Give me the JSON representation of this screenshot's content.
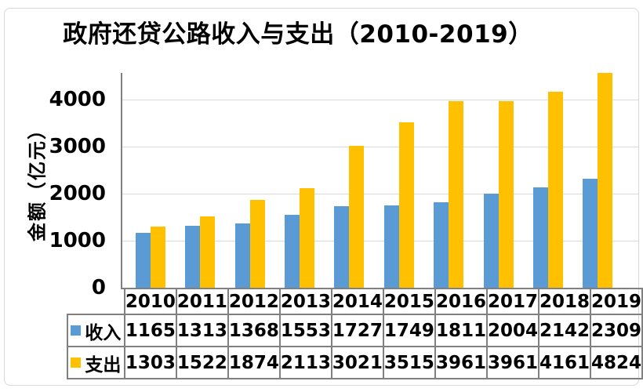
{
  "chart_data": {
    "type": "bar",
    "title": "政府还贷公路收入与支出（2010-2019）",
    "ylabel": "金额（亿元）",
    "categories": [
      "2010",
      "2011",
      "2012",
      "2013",
      "2014",
      "2015",
      "2016",
      "2017",
      "2018",
      "2019"
    ],
    "series": [
      {
        "key": "income",
        "name": "收入",
        "color": "#5B9BD5",
        "values": [
          1165,
          1313,
          1368,
          1553,
          1727,
          1749,
          1811,
          2004,
          2142,
          2309
        ]
      },
      {
        "key": "expense",
        "name": "支出",
        "color": "#FFC000",
        "values": [
          1303,
          1522,
          1874,
          2113,
          3021,
          3515,
          3961,
          3961,
          4161,
          4824
        ]
      }
    ],
    "yticks": [
      0,
      1000,
      2000,
      3000,
      4000
    ],
    "ylim": [
      0,
      4567
    ],
    "grid": true,
    "legend_position": "bottom-table",
    "colors": {
      "grid": "#d9d9d9",
      "axis": "#808080",
      "table_border": "#808080",
      "text": "#000000",
      "background": "#ffffff",
      "frame_border": "#d9d9d9"
    }
  }
}
